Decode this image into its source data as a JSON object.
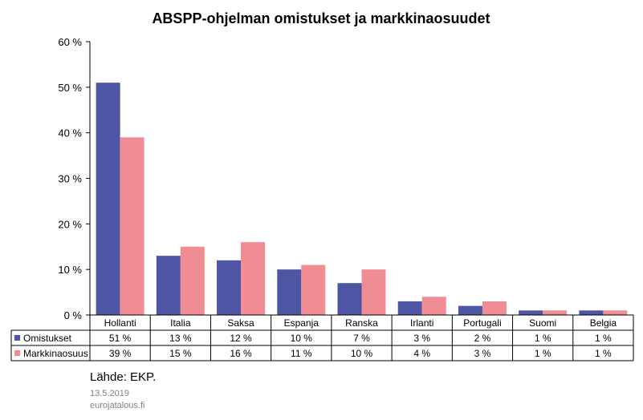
{
  "chart_data": {
    "type": "bar",
    "title": "ABSPP-ohjelman omistukset ja markkinaosuudet",
    "categories": [
      "Hollanti",
      "Italia",
      "Saksa",
      "Espanja",
      "Ranska",
      "Irlanti",
      "Portugali",
      "Suomi",
      "Belgia"
    ],
    "series": [
      {
        "name": "Omistukset",
        "color": "#4e55a4",
        "values": [
          51,
          13,
          12,
          10,
          7,
          3,
          2,
          1,
          1
        ],
        "labels": [
          "51 %",
          "13 %",
          "12 %",
          "10 %",
          "7 %",
          "3 %",
          "2 %",
          "1 %",
          "1 %"
        ]
      },
      {
        "name": "Markkinaosuus",
        "color": "#f08c94",
        "values": [
          39,
          15,
          16,
          11,
          10,
          4,
          3,
          1,
          1
        ],
        "labels": [
          "39 %",
          "15 %",
          "16 %",
          "11 %",
          "10 %",
          "4 %",
          "3 %",
          "1 %",
          "1 %"
        ]
      }
    ],
    "ylim": [
      0,
      60
    ],
    "yticks": [
      0,
      10,
      20,
      30,
      40,
      50,
      60
    ],
    "ytick_labels": [
      "0 %",
      "10 %",
      "20 %",
      "30 %",
      "40 %",
      "50 %",
      "60 %"
    ],
    "xlabel": "",
    "ylabel": "",
    "grid": false,
    "legend": "data-table"
  },
  "footer": {
    "source": "Lähde: EKP.",
    "date": "13.5.2019",
    "site": "eurojatalous.fi"
  }
}
